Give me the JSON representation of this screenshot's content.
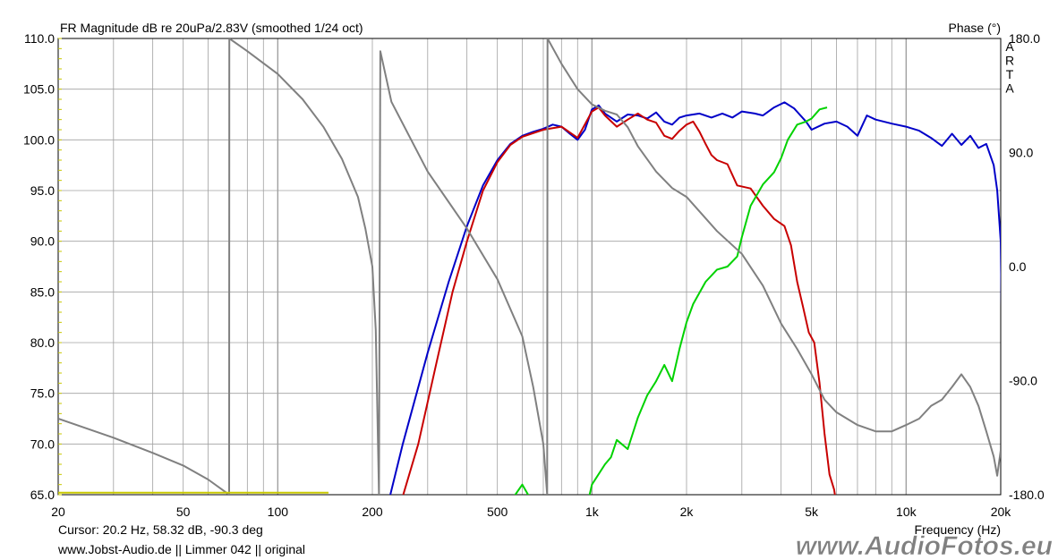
{
  "chart_data": {
    "type": "line",
    "title": "FR Magnitude dB re 20uPa/2.83V (smoothed 1/24 oct)",
    "right_axis_title": "Phase (°)",
    "brand_letters": [
      "A",
      "R",
      "T",
      "A"
    ],
    "xlabel": "Frequency (Hz)",
    "x_scale": "log",
    "xlim": [
      20,
      20000
    ],
    "x_ticks": [
      {
        "v": 20,
        "label": "20"
      },
      {
        "v": 50,
        "label": "50"
      },
      {
        "v": 100,
        "label": "100"
      },
      {
        "v": 200,
        "label": "200"
      },
      {
        "v": 500,
        "label": "500"
      },
      {
        "v": 1000,
        "label": "1k"
      },
      {
        "v": 2000,
        "label": "2k"
      },
      {
        "v": 5000,
        "label": "5k"
      },
      {
        "v": 10000,
        "label": "10k"
      },
      {
        "v": 20000,
        "label": "20k"
      }
    ],
    "ylim": [
      65,
      110
    ],
    "y_ticks": [
      "65.0",
      "70.0",
      "75.0",
      "80.0",
      "85.0",
      "90.0",
      "95.0",
      "100.0",
      "105.0",
      "110.0"
    ],
    "y2lim": [
      -180,
      180
    ],
    "y2_ticks": [
      "-180.0",
      "-90.0",
      "0.0",
      "90.0",
      "180.0"
    ],
    "grid": true,
    "series": [
      {
        "color": "#0000c8",
        "axis": "left",
        "points": [
          [
            220,
            63
          ],
          [
            250,
            70
          ],
          [
            300,
            79
          ],
          [
            350,
            86
          ],
          [
            400,
            91.5
          ],
          [
            450,
            95.5
          ],
          [
            500,
            98
          ],
          [
            550,
            99.6
          ],
          [
            600,
            100.4
          ],
          [
            650,
            100.8
          ],
          [
            700,
            101.1
          ],
          [
            750,
            101.5
          ],
          [
            800,
            101.3
          ],
          [
            850,
            100.6
          ],
          [
            900,
            100
          ],
          [
            950,
            101
          ],
          [
            1000,
            103
          ],
          [
            1050,
            103.4
          ],
          [
            1100,
            102.6
          ],
          [
            1200,
            101.8
          ],
          [
            1300,
            102.5
          ],
          [
            1400,
            102.4
          ],
          [
            1500,
            102.1
          ],
          [
            1600,
            102.7
          ],
          [
            1700,
            101.8
          ],
          [
            1800,
            101.5
          ],
          [
            1900,
            102.2
          ],
          [
            2000,
            102.4
          ],
          [
            2200,
            102.6
          ],
          [
            2400,
            102.2
          ],
          [
            2600,
            102.6
          ],
          [
            2800,
            102.2
          ],
          [
            3000,
            102.8
          ],
          [
            3300,
            102.6
          ],
          [
            3500,
            102.4
          ],
          [
            3800,
            103.2
          ],
          [
            4100,
            103.7
          ],
          [
            4400,
            103.1
          ],
          [
            4800,
            101.8
          ],
          [
            5000,
            101
          ],
          [
            5500,
            101.6
          ],
          [
            6000,
            101.8
          ],
          [
            6500,
            101.3
          ],
          [
            7000,
            100.4
          ],
          [
            7500,
            102.4
          ],
          [
            8000,
            102
          ],
          [
            9000,
            101.6
          ],
          [
            10000,
            101.3
          ],
          [
            11000,
            100.9
          ],
          [
            12000,
            100.2
          ],
          [
            13000,
            99.4
          ],
          [
            14000,
            100.6
          ],
          [
            15000,
            99.5
          ],
          [
            16000,
            100.4
          ],
          [
            17000,
            99.2
          ],
          [
            18000,
            99.6
          ],
          [
            19000,
            97.5
          ],
          [
            19500,
            95
          ],
          [
            20000,
            90
          ],
          [
            20300,
            75
          ]
        ]
      },
      {
        "color": "#c80000",
        "axis": "left",
        "points": [
          [
            240,
            63
          ],
          [
            280,
            70
          ],
          [
            320,
            78
          ],
          [
            360,
            85
          ],
          [
            400,
            90
          ],
          [
            450,
            95
          ],
          [
            500,
            97.8
          ],
          [
            550,
            99.5
          ],
          [
            600,
            100.3
          ],
          [
            700,
            101
          ],
          [
            800,
            101.3
          ],
          [
            900,
            100.2
          ],
          [
            1000,
            102.8
          ],
          [
            1050,
            103.2
          ],
          [
            1100,
            102.4
          ],
          [
            1200,
            101.3
          ],
          [
            1300,
            102
          ],
          [
            1400,
            102.6
          ],
          [
            1500,
            102
          ],
          [
            1600,
            101.7
          ],
          [
            1700,
            100.4
          ],
          [
            1800,
            100.1
          ],
          [
            1900,
            100.9
          ],
          [
            2000,
            101.5
          ],
          [
            2100,
            101.8
          ],
          [
            2200,
            100.8
          ],
          [
            2300,
            99.6
          ],
          [
            2400,
            98.5
          ],
          [
            2500,
            98
          ],
          [
            2700,
            97.6
          ],
          [
            2900,
            95.5
          ],
          [
            3200,
            95.2
          ],
          [
            3500,
            93.5
          ],
          [
            3800,
            92.2
          ],
          [
            4100,
            91.5
          ],
          [
            4300,
            89.6
          ],
          [
            4500,
            86
          ],
          [
            4700,
            83.5
          ],
          [
            4900,
            81
          ],
          [
            5100,
            80
          ],
          [
            5300,
            76
          ],
          [
            5500,
            71
          ],
          [
            5700,
            67
          ],
          [
            5900,
            65.5
          ],
          [
            6000,
            64
          ]
        ]
      },
      {
        "color": "#00d200",
        "axis": "left",
        "points": [
          [
            540,
            63
          ],
          [
            570,
            65
          ],
          [
            600,
            66
          ],
          [
            640,
            64.5
          ],
          [
            950,
            63
          ],
          [
            1000,
            66
          ],
          [
            1100,
            68
          ],
          [
            1150,
            68.7
          ],
          [
            1200,
            70.4
          ],
          [
            1300,
            69.5
          ],
          [
            1400,
            72.6
          ],
          [
            1500,
            74.8
          ],
          [
            1600,
            76.2
          ],
          [
            1700,
            77.8
          ],
          [
            1800,
            76.2
          ],
          [
            1900,
            79.4
          ],
          [
            2000,
            82
          ],
          [
            2100,
            83.8
          ],
          [
            2300,
            86
          ],
          [
            2500,
            87.2
          ],
          [
            2700,
            87.5
          ],
          [
            2900,
            88.5
          ],
          [
            3000,
            90.4
          ],
          [
            3200,
            93.5
          ],
          [
            3500,
            95.6
          ],
          [
            3800,
            96.8
          ],
          [
            4000,
            98.2
          ],
          [
            4200,
            100
          ],
          [
            4500,
            101.5
          ],
          [
            4800,
            101.8
          ],
          [
            5000,
            102.1
          ],
          [
            5300,
            103
          ],
          [
            5600,
            103.2
          ]
        ]
      },
      {
        "color": "#808080",
        "axis": "right",
        "points": [
          [
            20,
            -120
          ],
          [
            30,
            -135
          ],
          [
            40,
            -147
          ],
          [
            50,
            -157
          ],
          [
            60,
            -168
          ],
          [
            70,
            -180
          ],
          [
            70.1,
            180
          ],
          [
            80,
            170
          ],
          [
            100,
            152
          ],
          [
            120,
            132
          ],
          [
            140,
            110
          ],
          [
            160,
            85
          ],
          [
            180,
            55
          ],
          [
            190,
            30
          ],
          [
            200,
            0
          ],
          [
            205,
            -50
          ],
          [
            210,
            -180
          ],
          [
            212,
            170
          ],
          [
            230,
            130
          ],
          [
            300,
            75
          ],
          [
            400,
            30
          ],
          [
            500,
            -10
          ],
          [
            600,
            -55
          ],
          [
            650,
            -95
          ],
          [
            700,
            -140
          ],
          [
            720,
            -180
          ],
          [
            722,
            180
          ],
          [
            800,
            160
          ],
          [
            900,
            140
          ],
          [
            1000,
            128
          ],
          [
            1100,
            123
          ],
          [
            1200,
            120
          ],
          [
            1300,
            110
          ],
          [
            1400,
            95
          ],
          [
            1600,
            75
          ],
          [
            1800,
            62
          ],
          [
            2000,
            55
          ],
          [
            2500,
            28
          ],
          [
            3000,
            10
          ],
          [
            3500,
            -15
          ],
          [
            4000,
            -45
          ],
          [
            4500,
            -65
          ],
          [
            5000,
            -85
          ],
          [
            5500,
            -105
          ],
          [
            6000,
            -115
          ],
          [
            7000,
            -125
          ],
          [
            8000,
            -130
          ],
          [
            9000,
            -130
          ],
          [
            10000,
            -125
          ],
          [
            11000,
            -120
          ],
          [
            12000,
            -110
          ],
          [
            13000,
            -105
          ],
          [
            14000,
            -95
          ],
          [
            15000,
            -85
          ],
          [
            16000,
            -95
          ],
          [
            17000,
            -110
          ],
          [
            18000,
            -130
          ],
          [
            19000,
            -150
          ],
          [
            19500,
            -165
          ],
          [
            20000,
            -145
          ]
        ]
      },
      {
        "color": "#c8c800",
        "axis": "left",
        "points": [
          [
            20,
            65.2
          ],
          [
            145,
            65.2
          ]
        ]
      }
    ]
  },
  "cursor_text": "Cursor: 20.2 Hz, 58.32 dB, -90.3 deg",
  "footer_text": "www.Jobst-Audio.de  ||  Limmer 042  || original",
  "watermark": "www.AudioFotos.eu",
  "colors": {
    "grid": "#a0a0a0",
    "plot_bg": "#ffffff",
    "frame": "#000000",
    "watermark": "#808080"
  }
}
